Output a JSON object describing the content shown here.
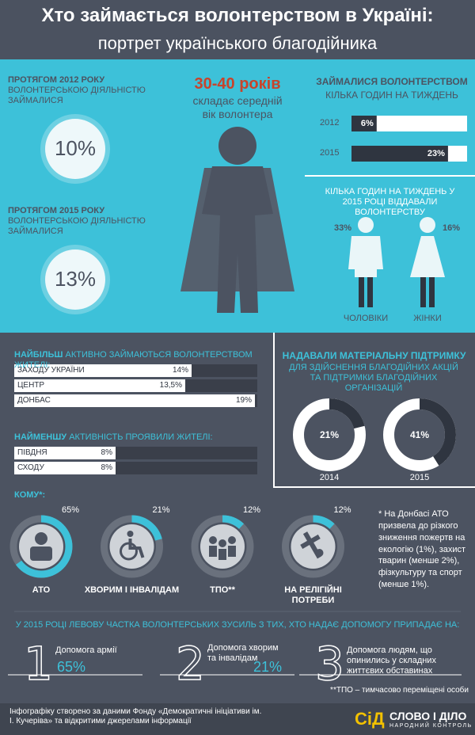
{
  "header": {
    "title": "Хто займається волонтерством в Україні:",
    "subtitle": "портрет українського благодійника"
  },
  "volunteering_share": [
    {
      "lead": "ПРОТЯГОМ 2012 РОКУ",
      "text": "ВОЛОНТЕРСЬКОЮ ДІЯЛЬНІСТЮ ЗАЙМАЛИСЯ",
      "value": "10%"
    },
    {
      "lead": "ПРОТЯГОМ 2015 РОКУ",
      "text": "ВОЛОНТЕРСЬКОЮ ДІЯЛЬНІСТЮ ЗАЙМАЛИСЯ",
      "value": "13%"
    }
  ],
  "age": {
    "value": "30-40 років",
    "caption": "складає середній вік волонтера"
  },
  "hours_per_week": {
    "title": "ЗАЙМАЛИСЯ ВОЛОНТЕРСТВОМ",
    "subtitle": "КІЛЬКА ГОДИН НА ТИЖДЕНЬ",
    "rows": [
      {
        "year": "2012",
        "value": 6,
        "label": "6%"
      },
      {
        "year": "2015",
        "value": 23,
        "label": "23%"
      }
    ]
  },
  "gender": {
    "title": "КІЛЬКА ГОДИН НА ТИЖДЕНЬ У 2015 РОЦІ ВІДДАВАЛИ ВОЛОНТЕРСТВУ",
    "items": [
      {
        "label": "ЧОЛОВІКИ",
        "value": "33%"
      },
      {
        "label": "ЖІНКИ",
        "value": "16%"
      }
    ]
  },
  "regions": {
    "most": {
      "lead": "НАЙБІЛЬШ",
      "title": "АКТИВНО ЗАЙМАЮТЬСЯ ВОЛОНТЕРСТВОМ ЖИТЕЛІ:",
      "rows": [
        {
          "name": "ЗАХОДУ УКРАЇНИ",
          "value": 14,
          "label": "14%"
        },
        {
          "name": "ЦЕНТР",
          "value": 13.5,
          "label": "13,5%"
        },
        {
          "name": "ДОНБАС",
          "value": 19,
          "label": "19%"
        }
      ]
    },
    "least": {
      "lead": "НАЙМЕНШУ",
      "title": "АКТИВНІСТЬ ПРОЯВИЛИ ЖИТЕЛІ:",
      "rows": [
        {
          "name": "ПІВДНЯ",
          "value": 8,
          "label": "8%"
        },
        {
          "name": "СХОДУ",
          "value": 8,
          "label": "8%"
        }
      ]
    }
  },
  "material_support": {
    "title": "НАДАВАЛИ МАТЕРІАЛЬНУ ПІДТРИМКУ",
    "subtitle": "ДЛЯ ЗДІЙСНЕННЯ БЛАГОДІЙНИХ АКЦІЙ ТА ПІДТРИМКИ БЛАГОДІЙНИХ ОРГАНІЗАЦІЙ",
    "years": [
      {
        "year": "2014",
        "value": 21,
        "label": "21%"
      },
      {
        "year": "2015",
        "value": 41,
        "label": "41%"
      }
    ]
  },
  "recipients": {
    "title": "КОМУ*:",
    "items": [
      {
        "name": "АТО",
        "value": 65,
        "label": "65%"
      },
      {
        "name": "ХВОРИМ І ІНВАЛІДАМ",
        "value": 21,
        "label": "21%"
      },
      {
        "name": "ТПО**",
        "value": 12,
        "label": "12%"
      },
      {
        "name": "НА РЕЛІГІЙНІ ПОТРЕБИ",
        "value": 12,
        "label": "12%"
      }
    ],
    "note": "* На Донбасі АТО призвела до різкого зниження пожертв на екологію (1%), захист тварин (менше 2%), фізкультуру та спорт (менше 1%)."
  },
  "lion_share": {
    "title": "У 2015 РОЦІ ЛЕВОВУ ЧАСТКА ВОЛОНТЕРСЬКИХ ЗУСИЛЬ З ТИХ, ХТО НАДАЄ ДОПОМОГУ ПРИПАДАЄ НА:",
    "items": [
      {
        "number": "1",
        "text": "Допомога армії",
        "value": "65%"
      },
      {
        "number": "2",
        "text": "Допомога хворим та інвалідам",
        "value": "21%"
      },
      {
        "number": "3",
        "text": "Допомога людям, що опинились у складних життєвих обставинах"
      }
    ]
  },
  "footnote": "**ТПО – тимчасово переміщені особи",
  "footer": {
    "source": "Інфографіку створено за даними Фонду «Демократичні ініціативи ім. І. Кучеріва» та відкритими джерелами інформації",
    "logo_abbr": "СіД",
    "logo_name": "СЛОВО І ДІЛО",
    "logo_tagline": "НАРОДНИЙ КОНТРОЛЬ"
  }
}
